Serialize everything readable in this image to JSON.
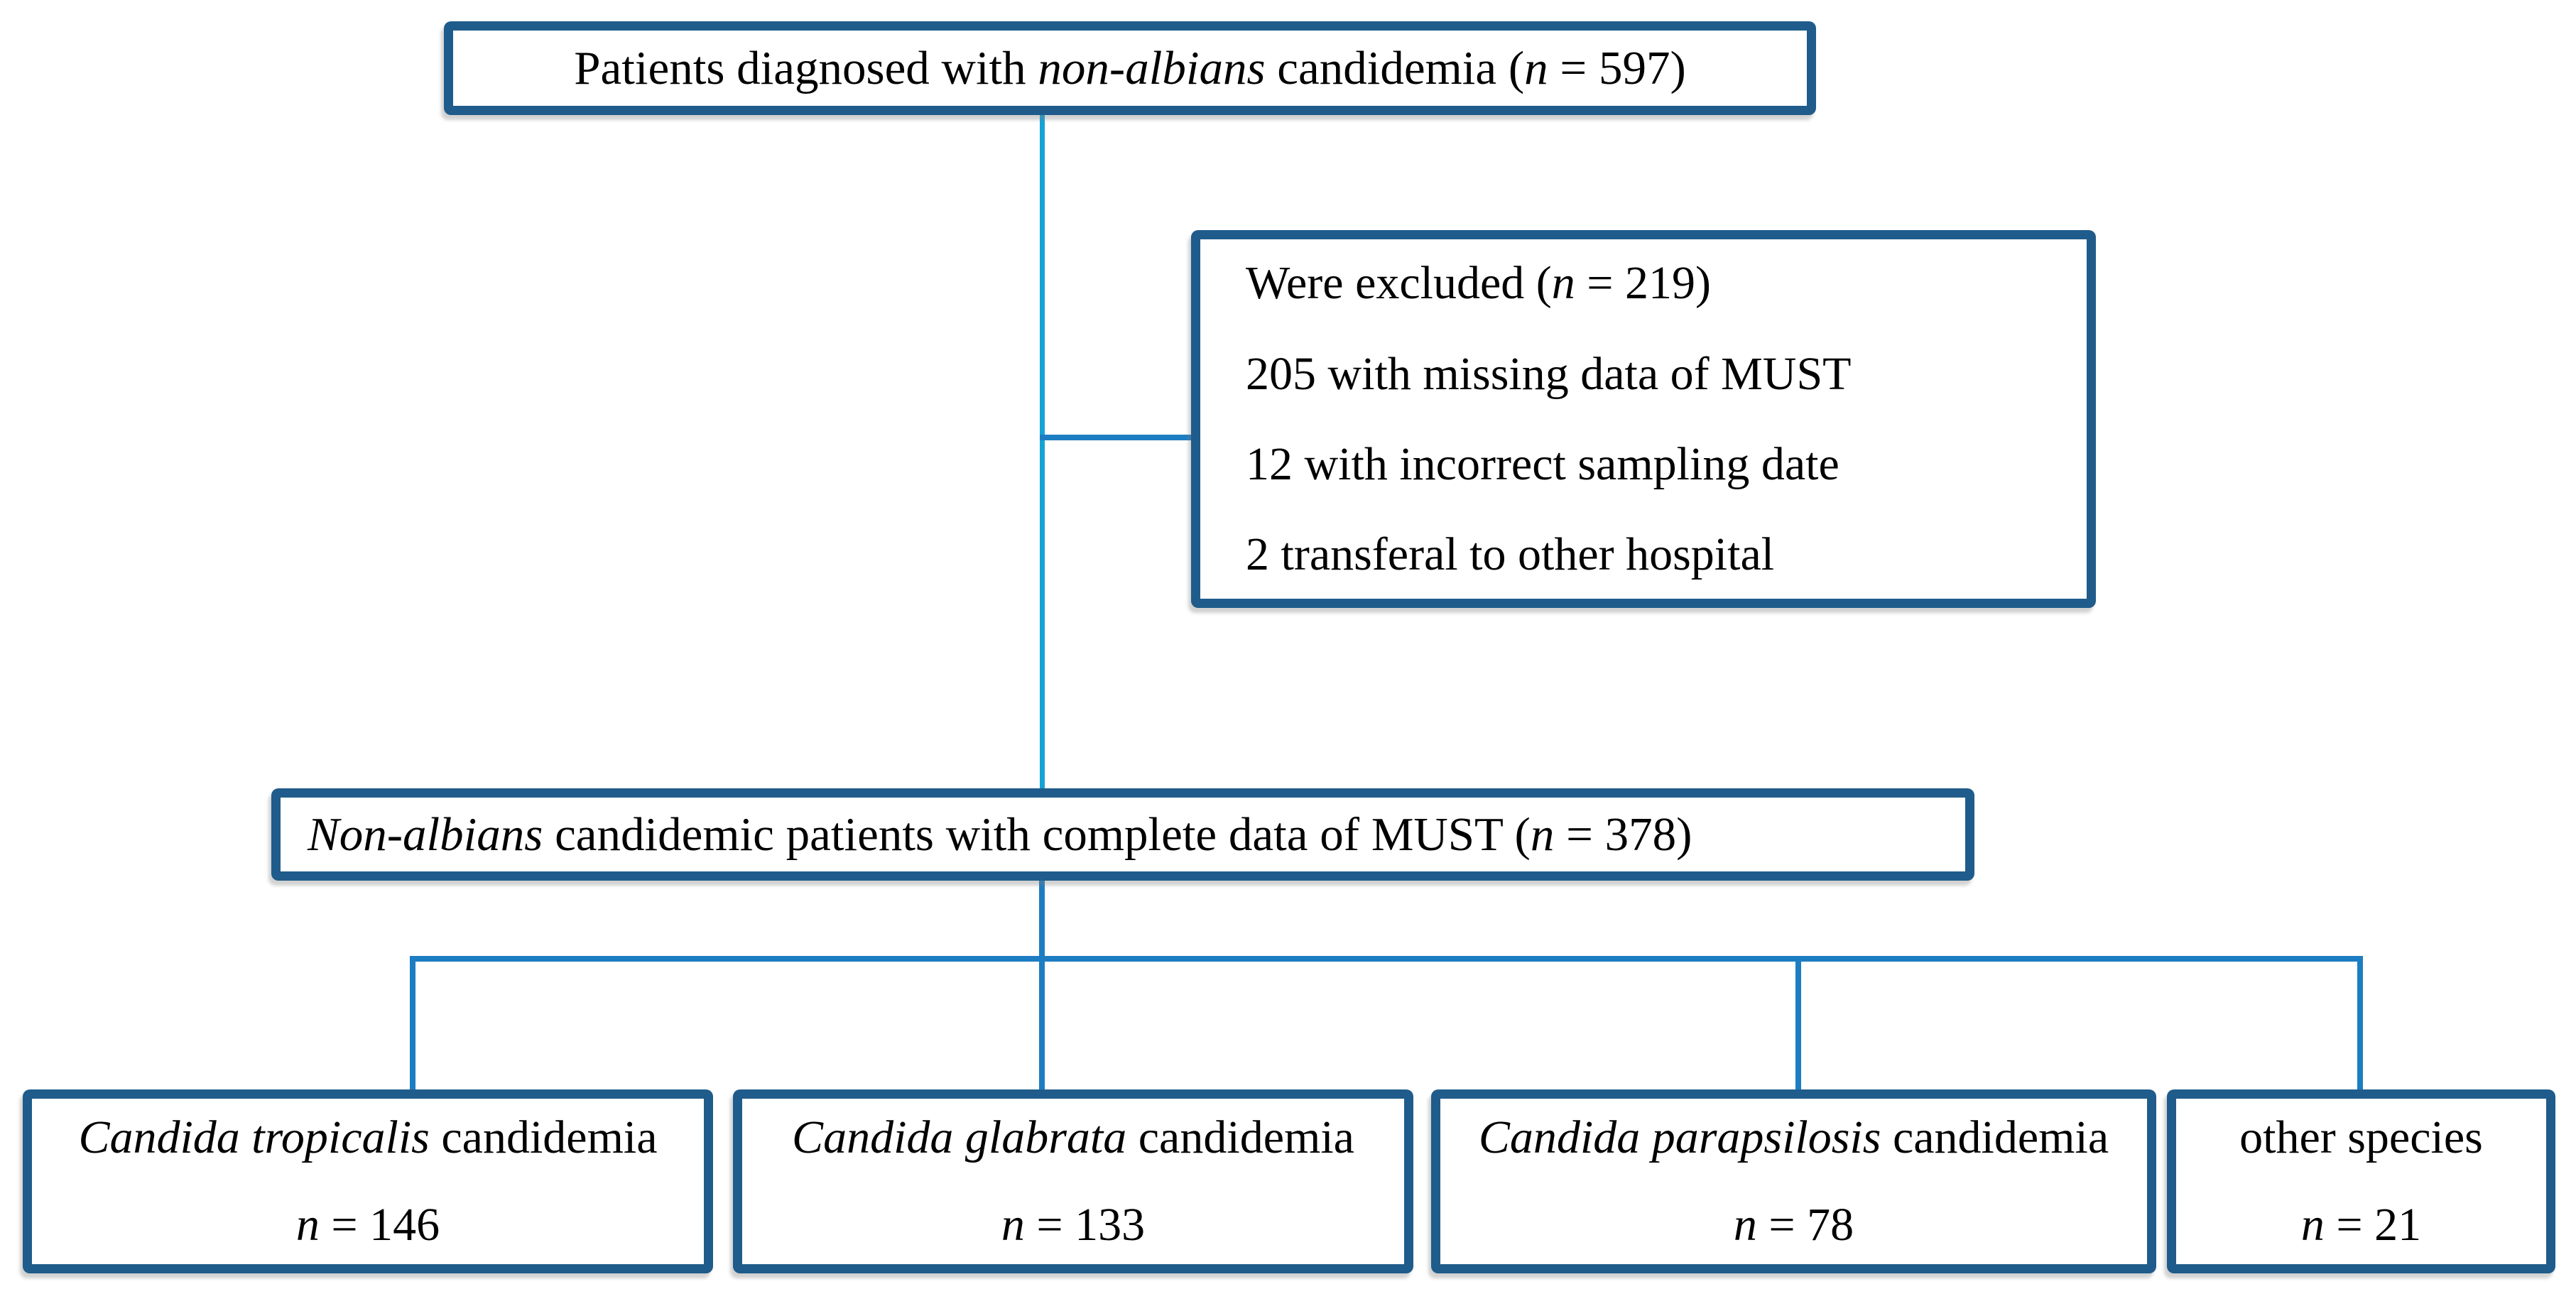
{
  "colors": {
    "background": "#FFFFFF",
    "box_border": "#1F5C8B",
    "connector_blue": "#1D7DC2",
    "connector_cyan": "#14A3D4",
    "text": "#000000"
  },
  "boxes": {
    "diagnosed": {
      "segments": [
        {
          "t": "Patients diagnosed with ",
          "i": false
        },
        {
          "t": "non-albians",
          "i": true
        },
        {
          "t": " candidemia (",
          "i": false
        },
        {
          "t": "n",
          "i": true
        },
        {
          "t": " = 597)",
          "i": false
        }
      ]
    },
    "excluded": {
      "lines": [
        [
          {
            "t": "Were excluded (",
            "i": false
          },
          {
            "t": "n",
            "i": true
          },
          {
            "t": " = 219)",
            "i": false
          }
        ],
        [
          {
            "t": "205 with missing data of MUST",
            "i": false
          }
        ],
        [
          {
            "t": "12 with incorrect sampling date",
            "i": false
          }
        ],
        [
          {
            "t": "2 transferal to other hospital",
            "i": false
          }
        ]
      ]
    },
    "cohort": {
      "segments": [
        {
          "t": "Non-albians",
          "i": true
        },
        {
          "t": " candidemic patients with complete data of MUST (",
          "i": false
        },
        {
          "t": "n",
          "i": true
        },
        {
          "t": " = 378)",
          "i": false
        }
      ]
    },
    "species": [
      {
        "name": [
          {
            "t": "Candida tropicalis",
            "i": true
          },
          {
            "t": " candidemia",
            "i": false
          }
        ],
        "count": [
          {
            "t": "n",
            "i": true
          },
          {
            "t": " = 146",
            "i": false
          }
        ]
      },
      {
        "name": [
          {
            "t": "Candida glabrata",
            "i": true
          },
          {
            "t": " candidemia",
            "i": false
          }
        ],
        "count": [
          {
            "t": "n",
            "i": true
          },
          {
            "t": " = 133",
            "i": false
          }
        ]
      },
      {
        "name": [
          {
            "t": "Candida parapsilosis",
            "i": true
          },
          {
            "t": " candidemia",
            "i": false
          }
        ],
        "count": [
          {
            "t": "n",
            "i": true
          },
          {
            "t": " = 78",
            "i": false
          }
        ]
      },
      {
        "name": [
          {
            "t": "other species",
            "i": false
          }
        ],
        "count": [
          {
            "t": "n",
            "i": true
          },
          {
            "t": " = 21",
            "i": false
          }
        ]
      }
    ]
  }
}
